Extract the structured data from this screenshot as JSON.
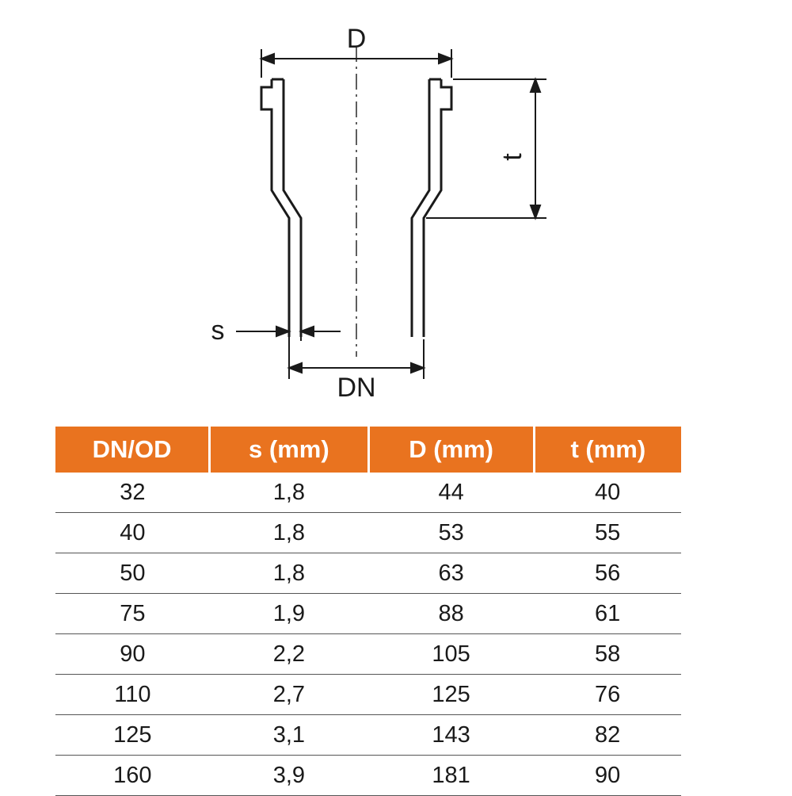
{
  "diagram": {
    "labels": {
      "D": "D",
      "DN": "DN",
      "s": "s",
      "t": "t"
    },
    "colors": {
      "stroke": "#1a1a1a",
      "text": "#1a1a1a",
      "background": "#ffffff"
    },
    "stroke_width_main": 3,
    "stroke_width_thin": 1.5,
    "label_fontsize": 34
  },
  "table": {
    "header_bg": "#e9731f",
    "header_fg": "#ffffff",
    "row_border": "#555555",
    "cell_fg": "#1a1a1a",
    "header_fontsize": 31,
    "cell_fontsize": 29,
    "columns": [
      "DN/OD",
      "s (mm)",
      "D (mm)",
      "t (mm)"
    ],
    "rows": [
      [
        "32",
        "1,8",
        "44",
        "40"
      ],
      [
        "40",
        "1,8",
        "53",
        "55"
      ],
      [
        "50",
        "1,8",
        "63",
        "56"
      ],
      [
        "75",
        "1,9",
        "88",
        "61"
      ],
      [
        "90",
        "2,2",
        "105",
        "58"
      ],
      [
        "110",
        "2,7",
        "125",
        "76"
      ],
      [
        "125",
        "3,1",
        "143",
        "82"
      ],
      [
        "160",
        "3,9",
        "181",
        "90"
      ]
    ]
  }
}
